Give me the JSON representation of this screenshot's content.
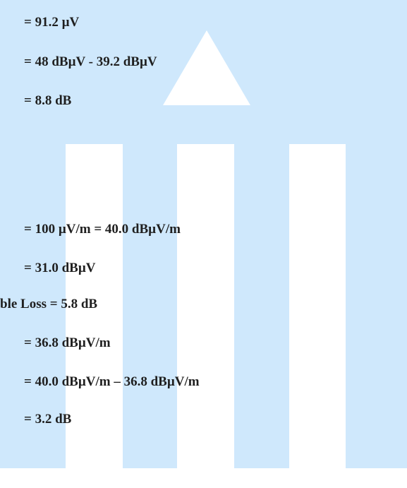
{
  "lines": [
    "= 91.2 µV",
    "= 48 dBµV - 39.2 dBµV",
    "= 8.8 dB",
    "= 100 µV/m = 40.0 dBµV/m",
    "= 31.0 dBµV",
    "ble Loss = 5.8 dB",
    "= 36.8 dBµV/m",
    "= 40.0 dBµV/m – 36.8 dBµV/m",
    "= 3.2 dB"
  ],
  "colors": {
    "watermark": "#cfe8fc",
    "text": "#1f1f1f"
  }
}
